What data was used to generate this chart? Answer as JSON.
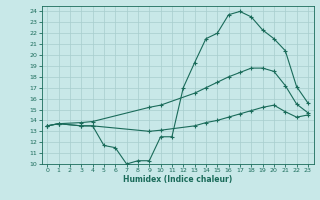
{
  "xlabel": "Humidex (Indice chaleur)",
  "background_color": "#c8e8e8",
  "line_color": "#1a6b5a",
  "grid_color": "#a8cece",
  "xlim": [
    -0.5,
    23.5
  ],
  "ylim": [
    10,
    24.5
  ],
  "xticks": [
    0,
    1,
    2,
    3,
    4,
    5,
    6,
    7,
    8,
    9,
    10,
    11,
    12,
    13,
    14,
    15,
    16,
    17,
    18,
    19,
    20,
    21,
    22,
    23
  ],
  "yticks": [
    10,
    11,
    12,
    13,
    14,
    15,
    16,
    17,
    18,
    19,
    20,
    21,
    22,
    23,
    24
  ],
  "line1_x": [
    0,
    1,
    3,
    4,
    5,
    6,
    7,
    8,
    9,
    10,
    11,
    12,
    13,
    14,
    15,
    16,
    17,
    18,
    19,
    20,
    21,
    22,
    23
  ],
  "line1_y": [
    13.5,
    13.7,
    13.5,
    13.5,
    11.7,
    11.5,
    10.0,
    10.3,
    10.3,
    12.5,
    12.5,
    17.0,
    19.3,
    21.5,
    22.0,
    23.7,
    24.0,
    23.5,
    22.3,
    21.5,
    20.4,
    17.1,
    15.6
  ],
  "line2_x": [
    0,
    1,
    3,
    4,
    9,
    10,
    13,
    14,
    15,
    16,
    17,
    18,
    19,
    20,
    21,
    22,
    23
  ],
  "line2_y": [
    13.5,
    13.7,
    13.8,
    13.9,
    15.2,
    15.4,
    16.5,
    17.0,
    17.5,
    18.0,
    18.4,
    18.8,
    18.8,
    18.5,
    17.2,
    15.5,
    14.7
  ],
  "line3_x": [
    0,
    1,
    3,
    4,
    9,
    10,
    13,
    14,
    15,
    16,
    17,
    18,
    19,
    20,
    21,
    22,
    23
  ],
  "line3_y": [
    13.5,
    13.7,
    13.5,
    13.5,
    13.0,
    13.1,
    13.5,
    13.8,
    14.0,
    14.3,
    14.6,
    14.9,
    15.2,
    15.4,
    14.8,
    14.3,
    14.5
  ]
}
